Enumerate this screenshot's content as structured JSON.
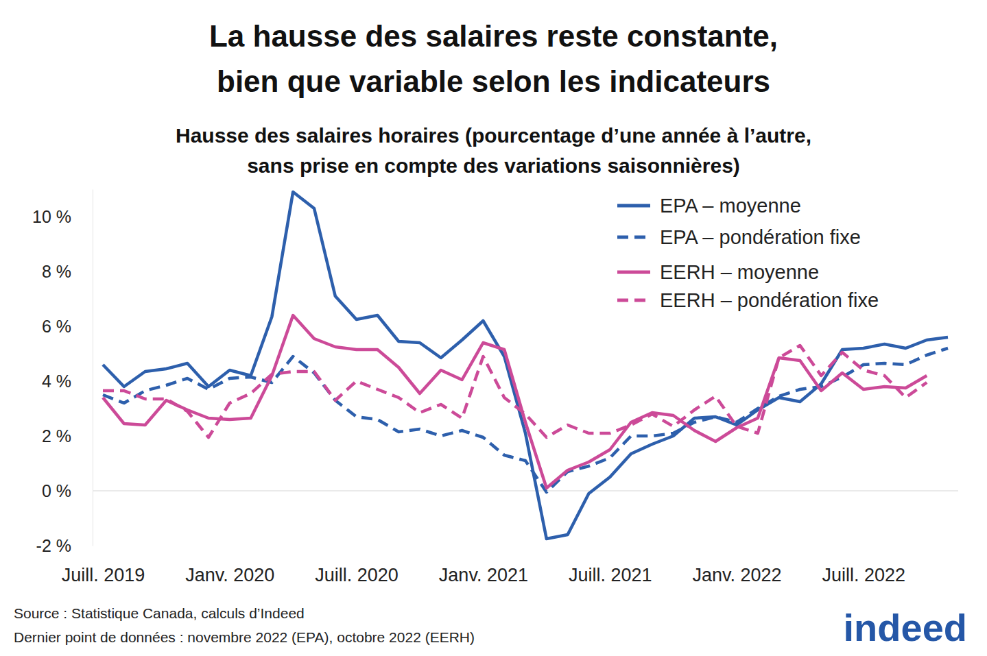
{
  "chart_data": {
    "type": "line",
    "title": [
      "La hausse des salaires reste constante,",
      "bien que variable selon les indicateurs"
    ],
    "subtitle": [
      "Hausse des salaires horaires (pourcentage d’une année à l’autre,",
      "sans prise en compte des variations saisonnières)"
    ],
    "source": "Source : Statistique Canada, calculs d’Indeed",
    "note": "Dernier point de données : novembre 2022 (EPA), octobre 2022 (EERH)",
    "logo": "indeed",
    "categories": [
      "Juill. 2019",
      null,
      null,
      null,
      null,
      null,
      "Janv. 2020",
      null,
      null,
      null,
      null,
      null,
      "Juill. 2020",
      null,
      null,
      null,
      null,
      null,
      "Janv. 2021",
      null,
      null,
      null,
      null,
      null,
      "Juill. 2021",
      null,
      null,
      null,
      null,
      null,
      "Janv. 2022",
      null,
      null,
      null,
      null,
      null,
      "Juill. 2022",
      null,
      null,
      null,
      null
    ],
    "ylim": [
      -2,
      11
    ],
    "yticks": [
      {
        "value": -2,
        "label": "-2 %"
      },
      {
        "value": 0,
        "label": "0 %"
      },
      {
        "value": 2,
        "label": "2 %"
      },
      {
        "value": 4,
        "label": "4 %"
      },
      {
        "value": 6,
        "label": "6 %"
      },
      {
        "value": 8,
        "label": "8 %"
      },
      {
        "value": 10,
        "label": "10 %"
      }
    ],
    "grid": false,
    "legend": "top-right",
    "series": [
      {
        "name": "EPA – moyenne",
        "color": "#2d5fac",
        "line_style": "solid",
        "values": [
          4.6,
          3.8,
          4.35,
          4.45,
          4.65,
          3.8,
          4.4,
          4.2,
          6.35,
          10.9,
          10.3,
          7.1,
          6.25,
          6.4,
          5.45,
          5.4,
          4.85,
          5.5,
          6.2,
          4.9,
          2.1,
          -1.75,
          -1.6,
          -0.1,
          0.5,
          1.35,
          1.7,
          2.0,
          2.65,
          2.7,
          2.4,
          2.95,
          3.4,
          3.25,
          3.9,
          5.15,
          5.2,
          5.35,
          5.2,
          5.5,
          5.6
        ]
      },
      {
        "name": "EPA – pondération fixe",
        "color": "#2d5fac",
        "line_style": "dashed",
        "values": [
          3.5,
          3.2,
          3.65,
          3.85,
          4.1,
          3.7,
          4.1,
          4.15,
          3.95,
          4.9,
          4.3,
          3.3,
          2.7,
          2.6,
          2.15,
          2.25,
          2.0,
          2.2,
          1.95,
          1.3,
          1.1,
          -0.05,
          0.7,
          0.9,
          1.2,
          2.0,
          2.0,
          2.1,
          2.5,
          2.7,
          2.5,
          3.0,
          3.45,
          3.7,
          3.8,
          4.15,
          4.6,
          4.65,
          4.6,
          4.95,
          5.2
        ]
      },
      {
        "name": "EERH – moyenne",
        "color": "#cc4a98",
        "line_style": "solid",
        "values": [
          3.4,
          2.45,
          2.4,
          3.3,
          2.95,
          2.65,
          2.6,
          2.65,
          4.2,
          6.4,
          5.55,
          5.25,
          5.15,
          5.15,
          4.5,
          3.55,
          4.4,
          4.05,
          5.4,
          5.15,
          2.5,
          0.1,
          0.75,
          1.05,
          1.5,
          2.5,
          2.85,
          2.75,
          2.2,
          1.8,
          2.3,
          2.65,
          4.85,
          4.75,
          3.65,
          4.3,
          3.7,
          3.8,
          3.75,
          4.2,
          null
        ]
      },
      {
        "name": "EERH – pondération fixe",
        "color": "#cc4a98",
        "line_style": "dashed",
        "values": [
          3.65,
          3.65,
          3.35,
          3.35,
          2.9,
          1.95,
          3.2,
          3.55,
          4.25,
          4.35,
          4.35,
          3.3,
          4.0,
          3.7,
          3.4,
          2.85,
          3.15,
          2.65,
          4.9,
          3.4,
          2.8,
          1.95,
          2.4,
          2.1,
          2.1,
          2.4,
          2.8,
          2.35,
          2.95,
          3.45,
          2.35,
          2.1,
          4.85,
          5.3,
          4.2,
          5.05,
          4.4,
          4.2,
          3.4,
          3.95,
          null
        ]
      }
    ]
  }
}
